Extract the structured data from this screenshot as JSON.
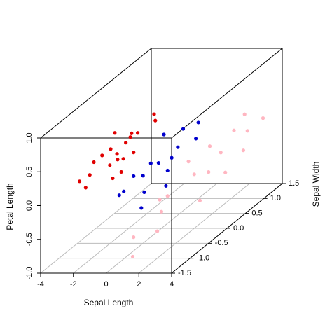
{
  "chart_data": {
    "type": "scatter3d",
    "xlabel": "Sepal Length",
    "ylabel": "Sepal Width",
    "zlabel": "Petal Length",
    "xlim": [
      -4,
      4
    ],
    "xticks": [
      -4,
      -2,
      0,
      2,
      4
    ],
    "ylim": [
      -1.5,
      1.5
    ],
    "yticks": [
      -1.5,
      {
        "value": -1,
        "label": "-1.0"
      },
      -0.5,
      {
        "value": 0,
        "label": "0.0"
      },
      0.5,
      {
        "value": 1,
        "label": "1.0"
      },
      1.5
    ],
    "zlim": [
      -1,
      1
    ],
    "zticks": [
      {
        "value": -1,
        "label": "-1.0"
      },
      -0.5,
      {
        "value": 0,
        "label": "0.0"
      },
      0.5,
      {
        "value": 1,
        "label": "1.0"
      }
    ],
    "grid": true,
    "series": [
      {
        "color": "#e00000",
        "x": [
          -2.5,
          -2.2,
          -1.8,
          -1.5,
          -1.2,
          -2.8,
          -3.2,
          -1.0,
          -1.6,
          -2.0,
          -0.8,
          -1.4,
          -2.4,
          -1.9,
          -0.6,
          -1.1,
          -2.6,
          -1.7,
          -0.9,
          -3.0
        ],
        "y": [
          -0.5,
          -0.4,
          -0.6,
          -0.3,
          -0.5,
          -0.7,
          -0.8,
          -0.2,
          -0.1,
          -0.3,
          -0.4,
          -0.7,
          -0.2,
          0.0,
          0.1,
          -0.6,
          -0.9,
          -0.45,
          0.2,
          -0.5
        ],
        "z": [
          0.3,
          0.35,
          0.2,
          0.4,
          0.25,
          0.1,
          0.05,
          0.5,
          0.45,
          0.15,
          0.3,
          0.05,
          0.5,
          0.35,
          0.55,
          0.1,
          0.0,
          0.3,
          0.6,
          0.2
        ]
      },
      {
        "color": "#0000cd",
        "x": [
          0.0,
          0.5,
          -0.5,
          1.0,
          0.3,
          -0.3,
          0.8,
          1.2,
          -0.8,
          0.2,
          0.6,
          -0.2,
          1.4,
          0.9,
          -1.0,
          0.4
        ],
        "y": [
          -0.5,
          -0.3,
          -0.8,
          0.0,
          -0.6,
          0.2,
          -0.9,
          0.4,
          -0.4,
          0.5,
          -0.1,
          -0.2,
          -0.5,
          0.6,
          -0.7,
          0.1
        ],
        "z": [
          0.0,
          0.1,
          -0.1,
          0.2,
          -0.2,
          0.3,
          -0.3,
          0.15,
          -0.05,
          0.25,
          -0.1,
          0.05,
          -0.15,
          0.3,
          -0.2,
          0.0
        ]
      },
      {
        "color": "#ffb6c1",
        "x": [
          1.0,
          1.5,
          2.0,
          2.5,
          3.0,
          1.8,
          2.2,
          3.2,
          1.2,
          2.8,
          0.8,
          3.5,
          2.4,
          1.6,
          2.0,
          3.0,
          1.4,
          2.6
        ],
        "y": [
          -1.2,
          -0.5,
          0.0,
          0.5,
          1.0,
          -0.8,
          0.3,
          0.8,
          0.2,
          -0.2,
          -0.4,
          1.2,
          0.9,
          0.6,
          -1.0,
          0.4,
          -1.4,
          1.1
        ],
        "z": [
          -0.6,
          -0.3,
          -0.2,
          -0.1,
          0.0,
          -0.4,
          -0.3,
          -0.2,
          -0.1,
          -0.5,
          -0.4,
          0.1,
          0.05,
          -0.05,
          -0.6,
          -0.35,
          -0.8,
          0.2
        ]
      }
    ]
  }
}
